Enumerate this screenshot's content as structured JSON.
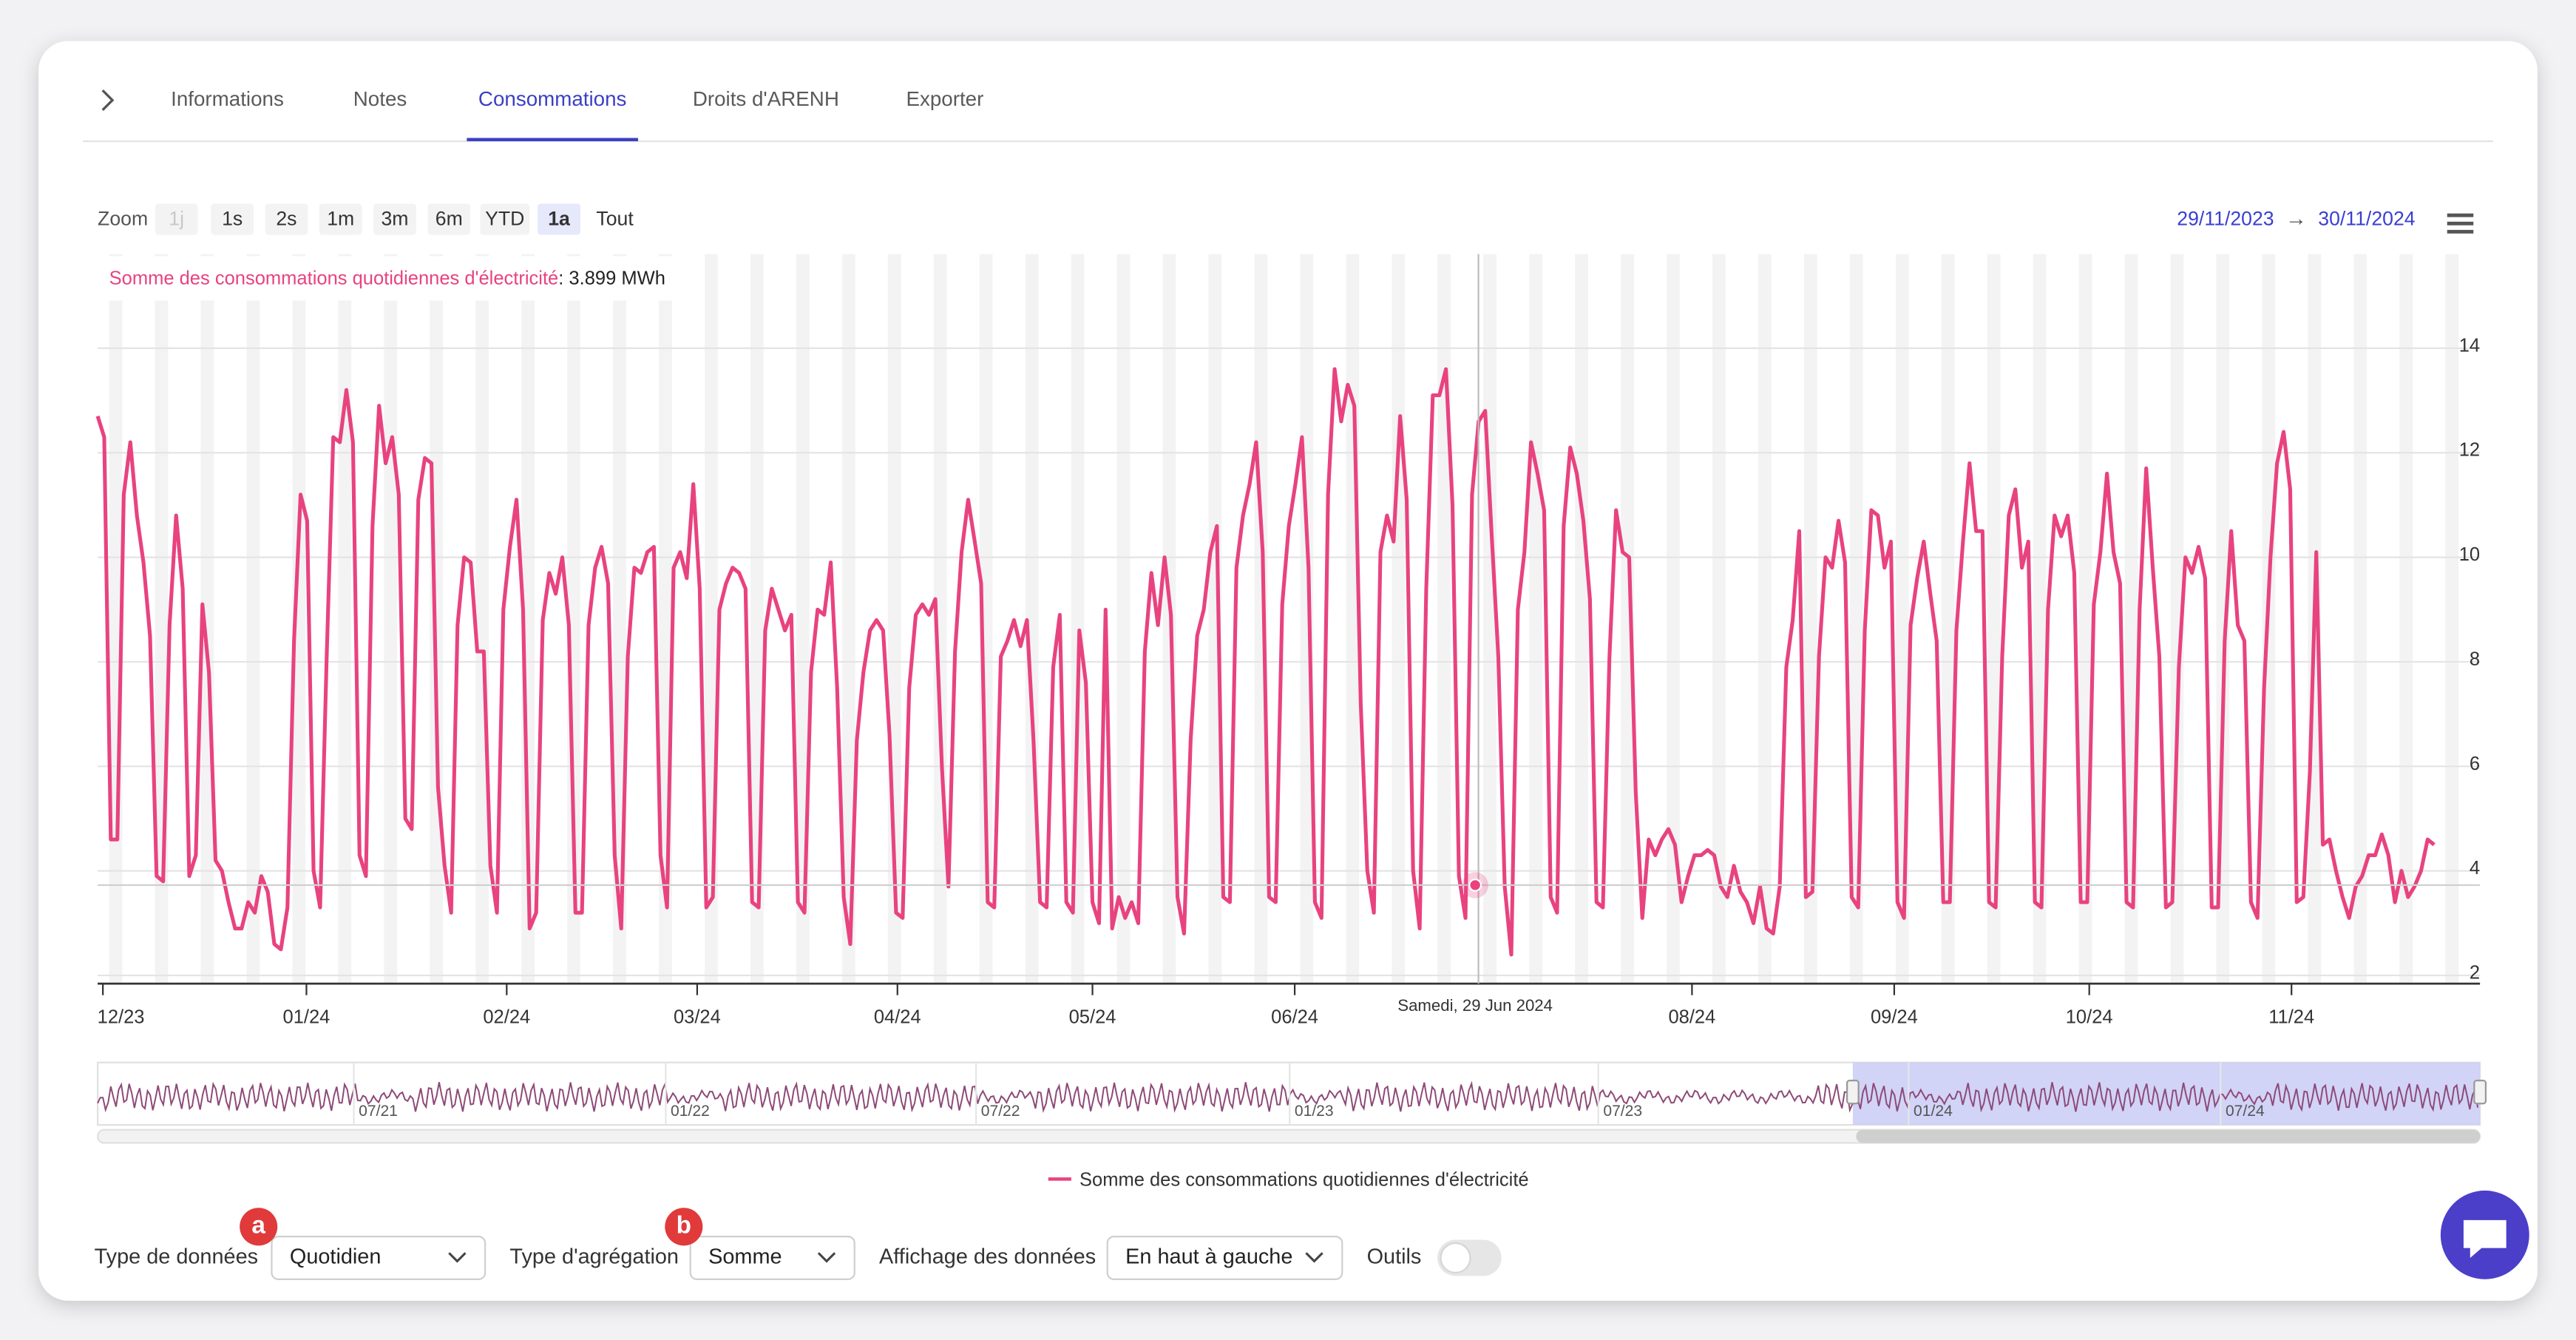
{
  "tabs": [
    "Informations",
    "Notes",
    "Consommations",
    "Droits d'ARENH",
    "Exporter"
  ],
  "active_tab": 2,
  "zoom": {
    "label": "Zoom",
    "buttons": [
      "1j",
      "1s",
      "2s",
      "1m",
      "3m",
      "6m",
      "YTD",
      "1a",
      "Tout"
    ],
    "active": 7,
    "disabled": 0
  },
  "date_range": {
    "from": "29/11/2023",
    "separator": "→",
    "to": "30/11/2024"
  },
  "chart_data": {
    "type": "line",
    "tooltip": {
      "value_label": ": 3.899 MWh",
      "date_label": "Samedi, 29 Jun 2024"
    },
    "series": [
      {
        "name": "Somme des consommations quotidiennes d'électricité",
        "color": "#e8437f",
        "values": [
          12.7,
          12.3,
          4.6,
          4.6,
          11.2,
          12.2,
          10.8,
          9.9,
          8.5,
          3.9,
          3.8,
          8.7,
          10.8,
          9.4,
          3.9,
          4.3,
          9.1,
          7.8,
          4.2,
          4.0,
          3.4,
          2.9,
          2.9,
          3.4,
          3.2,
          3.9,
          3.6,
          2.6,
          2.5,
          3.3,
          8.4,
          11.2,
          10.7,
          4.0,
          3.3,
          8.1,
          12.3,
          12.2,
          13.2,
          12.2,
          4.3,
          3.9,
          10.6,
          12.9,
          11.8,
          12.3,
          11.2,
          5.0,
          4.8,
          11.1,
          11.9,
          11.8,
          5.6,
          4.1,
          3.2,
          8.7,
          10.0,
          9.9,
          8.2,
          8.2,
          4.1,
          3.2,
          9.0,
          10.2,
          11.1,
          9.0,
          2.9,
          3.2,
          8.8,
          9.7,
          9.3,
          10.0,
          8.7,
          3.2,
          3.2,
          8.7,
          9.8,
          10.2,
          9.5,
          4.3,
          2.9,
          8.1,
          9.8,
          9.7,
          10.1,
          10.2,
          4.3,
          3.3,
          9.8,
          10.1,
          9.6,
          11.4,
          9.4,
          3.3,
          3.5,
          9.0,
          9.5,
          9.8,
          9.7,
          9.4,
          3.4,
          3.3,
          8.6,
          9.4,
          9.0,
          8.6,
          8.9,
          3.4,
          3.2,
          7.8,
          9.0,
          8.9,
          9.9,
          7.5,
          3.5,
          2.6,
          6.5,
          7.8,
          8.6,
          8.8,
          8.6,
          6.6,
          3.2,
          3.1,
          7.5,
          8.9,
          9.1,
          8.9,
          9.2,
          6.0,
          3.7,
          8.2,
          10.1,
          11.1,
          10.3,
          9.5,
          3.4,
          3.3,
          8.1,
          8.4,
          8.8,
          8.3,
          8.8,
          6.5,
          3.4,
          3.3,
          7.9,
          8.9,
          3.4,
          3.2,
          8.6,
          7.6,
          3.4,
          3.0,
          9.0,
          2.9,
          3.5,
          3.1,
          3.4,
          3.0,
          8.2,
          9.7,
          8.7,
          10.0,
          8.9,
          3.5,
          2.8,
          6.5,
          8.5,
          9.0,
          10.1,
          10.6,
          3.5,
          3.4,
          9.8,
          10.8,
          11.4,
          12.2,
          10.1,
          3.5,
          3.4,
          9.1,
          10.6,
          11.4,
          12.3,
          9.8,
          3.4,
          3.1,
          11.2,
          13.6,
          12.6,
          13.3,
          12.9,
          7.2,
          4.0,
          3.2,
          10.1,
          10.8,
          10.3,
          12.7,
          11.1,
          4.0,
          2.9,
          9.4,
          13.1,
          13.1,
          13.6,
          11.0,
          3.9,
          3.1,
          11.2,
          12.6,
          12.8,
          10.4,
          8.1,
          3.7,
          2.4,
          9.0,
          10.1,
          12.2,
          11.6,
          10.9,
          3.5,
          3.2,
          10.6,
          12.1,
          11.6,
          10.7,
          9.2,
          3.4,
          3.3,
          8.1,
          10.9,
          10.1,
          10.0,
          5.5,
          3.1,
          4.6,
          4.3,
          4.6,
          4.8,
          4.5,
          3.4,
          3.9,
          4.3,
          4.3,
          4.4,
          4.3,
          3.7,
          3.5,
          4.1,
          3.6,
          3.4,
          3.0,
          3.7,
          2.9,
          2.8,
          3.7,
          7.9,
          8.8,
          10.5,
          3.5,
          3.6,
          8.1,
          10.0,
          9.8,
          10.7,
          9.9,
          3.5,
          3.3,
          8.6,
          10.9,
          10.8,
          9.8,
          10.3,
          3.4,
          3.1,
          8.7,
          9.6,
          10.3,
          9.3,
          8.4,
          3.4,
          3.4,
          8.6,
          10.3,
          11.8,
          10.5,
          10.5,
          3.4,
          3.3,
          8.1,
          10.8,
          11.3,
          9.8,
          10.3,
          3.4,
          3.3,
          9.0,
          10.8,
          10.4,
          10.8,
          9.7,
          3.4,
          3.4,
          9.1,
          10.1,
          11.6,
          10.1,
          9.5,
          3.4,
          3.3,
          9.0,
          11.7,
          9.8,
          8.1,
          3.3,
          3.4,
          7.9,
          10.0,
          9.7,
          10.2,
          9.6,
          3.3,
          3.3,
          8.4,
          10.5,
          8.7,
          8.4,
          3.4,
          3.1,
          7.5,
          10.0,
          11.8,
          12.4,
          11.3,
          3.4,
          3.5,
          5.9,
          10.1,
          4.5,
          4.6,
          4.0,
          3.5,
          3.1,
          3.7,
          3.9,
          4.3,
          4.3,
          4.7,
          4.3,
          3.4,
          4.0,
          3.5,
          3.7,
          4.0,
          4.6,
          4.5
        ]
      }
    ],
    "xlim": [
      0,
      364
    ],
    "xticks": [
      {
        "value": 0.8,
        "label": "12/23"
      },
      {
        "value": 31.9,
        "label": "01/24"
      },
      {
        "value": 62.5,
        "label": "02/24"
      },
      {
        "value": 91.6,
        "label": "03/24"
      },
      {
        "value": 122.2,
        "label": "04/24"
      },
      {
        "value": 152,
        "label": "05/24"
      },
      {
        "value": 182.9,
        "label": "06/24"
      },
      {
        "value": 243.6,
        "label": "08/24"
      },
      {
        "value": 274.5,
        "label": "09/24"
      },
      {
        "value": 304.3,
        "label": "10/24"
      },
      {
        "value": 335.2,
        "label": "11/24"
      }
    ],
    "ylim": [
      2,
      15.8
    ],
    "yticks": [
      2,
      4,
      6,
      8,
      10,
      12,
      14
    ],
    "grid": true
  },
  "navigator": {
    "labels": [
      "07/21",
      "01/22",
      "07/22",
      "01/23",
      "07/23",
      "01/24",
      "07/24"
    ]
  },
  "controls": [
    {
      "badge": "a",
      "label": "Type de données",
      "value": "Quotidien"
    },
    {
      "badge": "b",
      "label": "Type d'agrégation",
      "value": "Somme"
    },
    {
      "label": "Affichage des données",
      "value": "En haut à gauche"
    }
  ],
  "tools_label": "Outils"
}
